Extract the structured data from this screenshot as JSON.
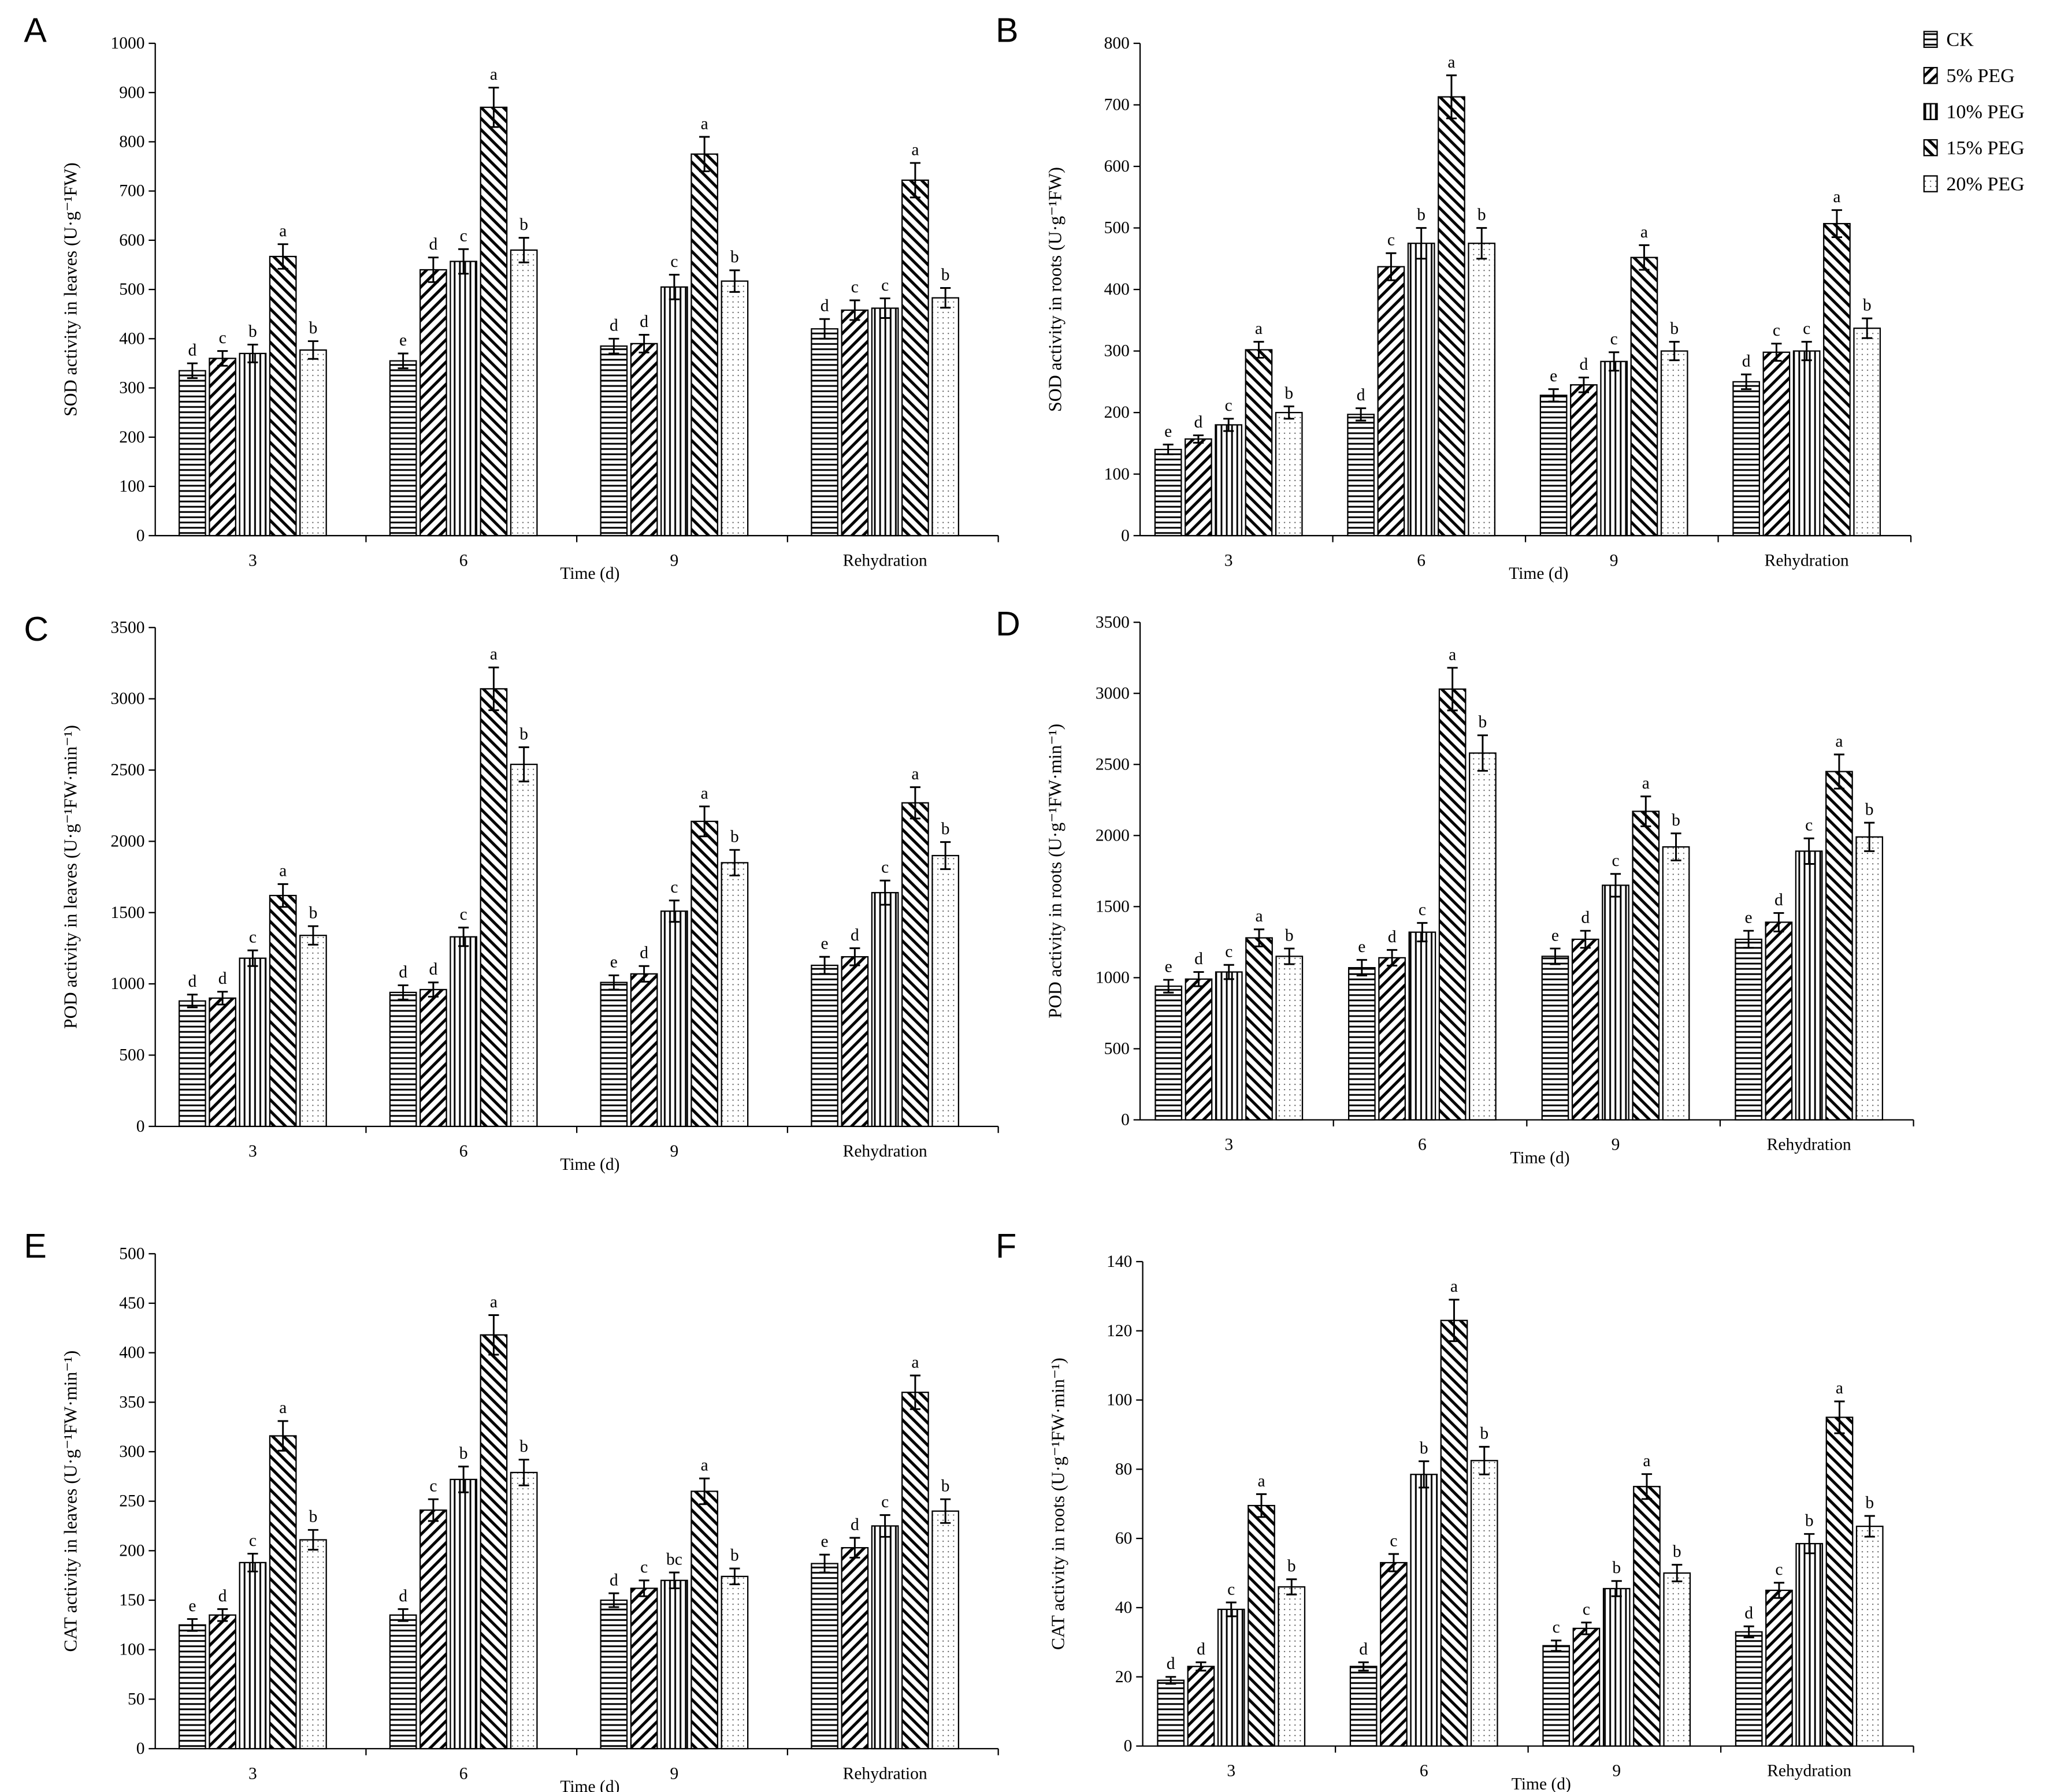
{
  "legend": {
    "series": [
      {
        "name": "CK",
        "pattern": "horizontal"
      },
      {
        "name": "5% PEG",
        "pattern": "forward-diagonal"
      },
      {
        "name": "10% PEG",
        "pattern": "vertical"
      },
      {
        "name": "15% PEG",
        "pattern": "backward-diagonal"
      },
      {
        "name": "20% PEG",
        "pattern": "dots"
      }
    ]
  },
  "chart_data": [
    {
      "type": "bar",
      "panel": "A",
      "y_label": "SOD activity in leaves (U·g⁻¹FW)",
      "x_label": "Time (d)",
      "categories": [
        "3",
        "6",
        "9",
        "Rehydration"
      ],
      "ylim": [
        0,
        1000
      ],
      "yticks": [
        0,
        100,
        200,
        300,
        400,
        500,
        600,
        700,
        800,
        900,
        1000
      ],
      "series": [
        {
          "values": [
            335,
            355,
            385,
            420
          ],
          "errors": [
            15,
            15,
            15,
            20
          ],
          "letters": [
            "d",
            "e",
            "d",
            "d"
          ]
        },
        {
          "values": [
            360,
            540,
            390,
            458
          ],
          "errors": [
            15,
            25,
            18,
            20
          ],
          "letters": [
            "c",
            "d",
            "d",
            "c"
          ]
        },
        {
          "values": [
            370,
            557,
            505,
            462
          ],
          "errors": [
            18,
            25,
            25,
            20
          ],
          "letters": [
            "b",
            "c",
            "c",
            "c"
          ]
        },
        {
          "values": [
            567,
            870,
            775,
            722
          ],
          "errors": [
            25,
            40,
            35,
            35
          ],
          "letters": [
            "a",
            "a",
            "a",
            "a"
          ]
        },
        {
          "values": [
            377,
            580,
            517,
            483
          ],
          "errors": [
            18,
            25,
            22,
            20
          ],
          "letters": [
            "b",
            "b",
            "b",
            "b"
          ]
        }
      ]
    },
    {
      "type": "bar",
      "panel": "B",
      "y_label": "SOD activity in roots (U·g⁻¹FW)",
      "x_label": "Time (d)",
      "categories": [
        "3",
        "6",
        "9",
        "Rehydration"
      ],
      "ylim": [
        0,
        800
      ],
      "yticks": [
        0,
        100,
        200,
        300,
        400,
        500,
        600,
        700,
        800
      ],
      "series": [
        {
          "values": [
            140,
            197,
            228,
            250
          ],
          "errors": [
            8,
            10,
            10,
            12
          ],
          "letters": [
            "e",
            "d",
            "e",
            "d"
          ]
        },
        {
          "values": [
            157,
            437,
            245,
            298
          ],
          "errors": [
            6,
            22,
            12,
            14
          ],
          "letters": [
            "d",
            "c",
            "d",
            "c"
          ]
        },
        {
          "values": [
            180,
            475,
            283,
            300
          ],
          "errors": [
            10,
            25,
            15,
            15
          ],
          "letters": [
            "c",
            "b",
            "c",
            "c"
          ]
        },
        {
          "values": [
            302,
            713,
            452,
            507
          ],
          "errors": [
            13,
            35,
            20,
            22
          ],
          "letters": [
            "a",
            "a",
            "a",
            "a"
          ]
        },
        {
          "values": [
            200,
            475,
            300,
            337
          ],
          "errors": [
            10,
            25,
            15,
            16
          ],
          "letters": [
            "b",
            "b",
            "b",
            "b"
          ]
        }
      ]
    },
    {
      "type": "bar",
      "panel": "C",
      "y_label": "POD activity in leaves (U·g⁻¹FW·min⁻¹)",
      "x_label": "Time (d)",
      "categories": [
        "3",
        "6",
        "9",
        "Rehydration"
      ],
      "ylim": [
        0,
        3500
      ],
      "yticks": [
        0,
        500,
        1000,
        1500,
        2000,
        2500,
        3000,
        3500
      ],
      "series": [
        {
          "values": [
            880,
            940,
            1010,
            1130
          ],
          "errors": [
            45,
            50,
            50,
            60
          ],
          "letters": [
            "d",
            "d",
            "e",
            "e"
          ]
        },
        {
          "values": [
            900,
            960,
            1070,
            1190
          ],
          "errors": [
            45,
            50,
            55,
            60
          ],
          "letters": [
            "d",
            "d",
            "d",
            "d"
          ]
        },
        {
          "values": [
            1180,
            1330,
            1510,
            1640
          ],
          "errors": [
            55,
            65,
            75,
            85
          ],
          "letters": [
            "c",
            "c",
            "c",
            "c"
          ]
        },
        {
          "values": [
            1620,
            3070,
            2140,
            2270
          ],
          "errors": [
            80,
            150,
            105,
            110
          ],
          "letters": [
            "a",
            "a",
            "a",
            "a"
          ]
        },
        {
          "values": [
            1340,
            2540,
            1850,
            1900
          ],
          "errors": [
            65,
            120,
            90,
            95
          ],
          "letters": [
            "b",
            "b",
            "b",
            "b"
          ]
        }
      ]
    },
    {
      "type": "bar",
      "panel": "D",
      "y_label": "POD activity in roots (U·g⁻¹FW·min⁻¹)",
      "x_label": "Time (d)",
      "categories": [
        "3",
        "6",
        "9",
        "Rehydration"
      ],
      "ylim": [
        0,
        3500
      ],
      "yticks": [
        0,
        500,
        1000,
        1500,
        2000,
        2500,
        3000,
        3500
      ],
      "series": [
        {
          "values": [
            940,
            1070,
            1150,
            1270
          ],
          "errors": [
            45,
            55,
            55,
            60
          ],
          "letters": [
            "e",
            "e",
            "e",
            "e"
          ]
        },
        {
          "values": [
            990,
            1140,
            1270,
            1390
          ],
          "errors": [
            50,
            55,
            60,
            65
          ],
          "letters": [
            "d",
            "d",
            "d",
            "d"
          ]
        },
        {
          "values": [
            1040,
            1320,
            1650,
            1890
          ],
          "errors": [
            50,
            65,
            80,
            90
          ],
          "letters": [
            "c",
            "c",
            "c",
            "c"
          ]
        },
        {
          "values": [
            1280,
            3030,
            2170,
            2450
          ],
          "errors": [
            60,
            150,
            105,
            120
          ],
          "letters": [
            "a",
            "a",
            "a",
            "a"
          ]
        },
        {
          "values": [
            1150,
            2580,
            1920,
            1990
          ],
          "errors": [
            55,
            125,
            95,
            100
          ],
          "letters": [
            "b",
            "b",
            "b",
            "b"
          ]
        }
      ]
    },
    {
      "type": "bar",
      "panel": "E",
      "y_label": "CAT activity in leaves (U·g⁻¹FW·min⁻¹)",
      "x_label": "Time (d)",
      "categories": [
        "3",
        "6",
        "9",
        "Rehydration"
      ],
      "ylim": [
        0,
        500
      ],
      "yticks": [
        0,
        50,
        100,
        150,
        200,
        250,
        300,
        350,
        400,
        450,
        500
      ],
      "series": [
        {
          "values": [
            125,
            135,
            150,
            187
          ],
          "errors": [
            6,
            6,
            7,
            9
          ],
          "letters": [
            "e",
            "d",
            "d",
            "e"
          ]
        },
        {
          "values": [
            135,
            241,
            162,
            203
          ],
          "errors": [
            6,
            11,
            8,
            10
          ],
          "letters": [
            "d",
            "c",
            "c",
            "d"
          ]
        },
        {
          "values": [
            188,
            272,
            170,
            225
          ],
          "errors": [
            9,
            13,
            8,
            11
          ],
          "letters": [
            "c",
            "b",
            "bc",
            "c"
          ]
        },
        {
          "values": [
            316,
            418,
            260,
            360
          ],
          "errors": [
            15,
            20,
            13,
            17
          ],
          "letters": [
            "a",
            "a",
            "a",
            "a"
          ]
        },
        {
          "values": [
            211,
            279,
            174,
            240
          ],
          "errors": [
            10,
            13,
            8,
            12
          ],
          "letters": [
            "b",
            "b",
            "b",
            "b"
          ]
        }
      ]
    },
    {
      "type": "bar",
      "panel": "F",
      "y_label": "CAT activity in roots (U·g⁻¹FW·min⁻¹)",
      "x_label": "Time (d)",
      "categories": [
        "3",
        "6",
        "9",
        "Rehydration"
      ],
      "ylim": [
        0,
        140
      ],
      "yticks": [
        0,
        20,
        40,
        60,
        80,
        100,
        120,
        140
      ],
      "series": [
        {
          "values": [
            19,
            23,
            29,
            33
          ],
          "errors": [
            1,
            1.2,
            1.5,
            1.6
          ],
          "letters": [
            "d",
            "d",
            "c",
            "d"
          ]
        },
        {
          "values": [
            23,
            53,
            34,
            45
          ],
          "errors": [
            1.2,
            2.5,
            1.7,
            2.2
          ],
          "letters": [
            "d",
            "c",
            "c",
            "c"
          ]
        },
        {
          "values": [
            39.5,
            78.5,
            45.5,
            58.5
          ],
          "errors": [
            2,
            3.8,
            2.2,
            2.8
          ],
          "letters": [
            "c",
            "b",
            "b",
            "b"
          ]
        },
        {
          "values": [
            69.5,
            123,
            75,
            95
          ],
          "errors": [
            3.3,
            6,
            3.6,
            4.6
          ],
          "letters": [
            "a",
            "a",
            "a",
            "a"
          ]
        },
        {
          "values": [
            46,
            82.5,
            50,
            63.5
          ],
          "errors": [
            2.2,
            4,
            2.4,
            3
          ],
          "letters": [
            "b",
            "b",
            "b",
            "b"
          ]
        }
      ]
    }
  ]
}
